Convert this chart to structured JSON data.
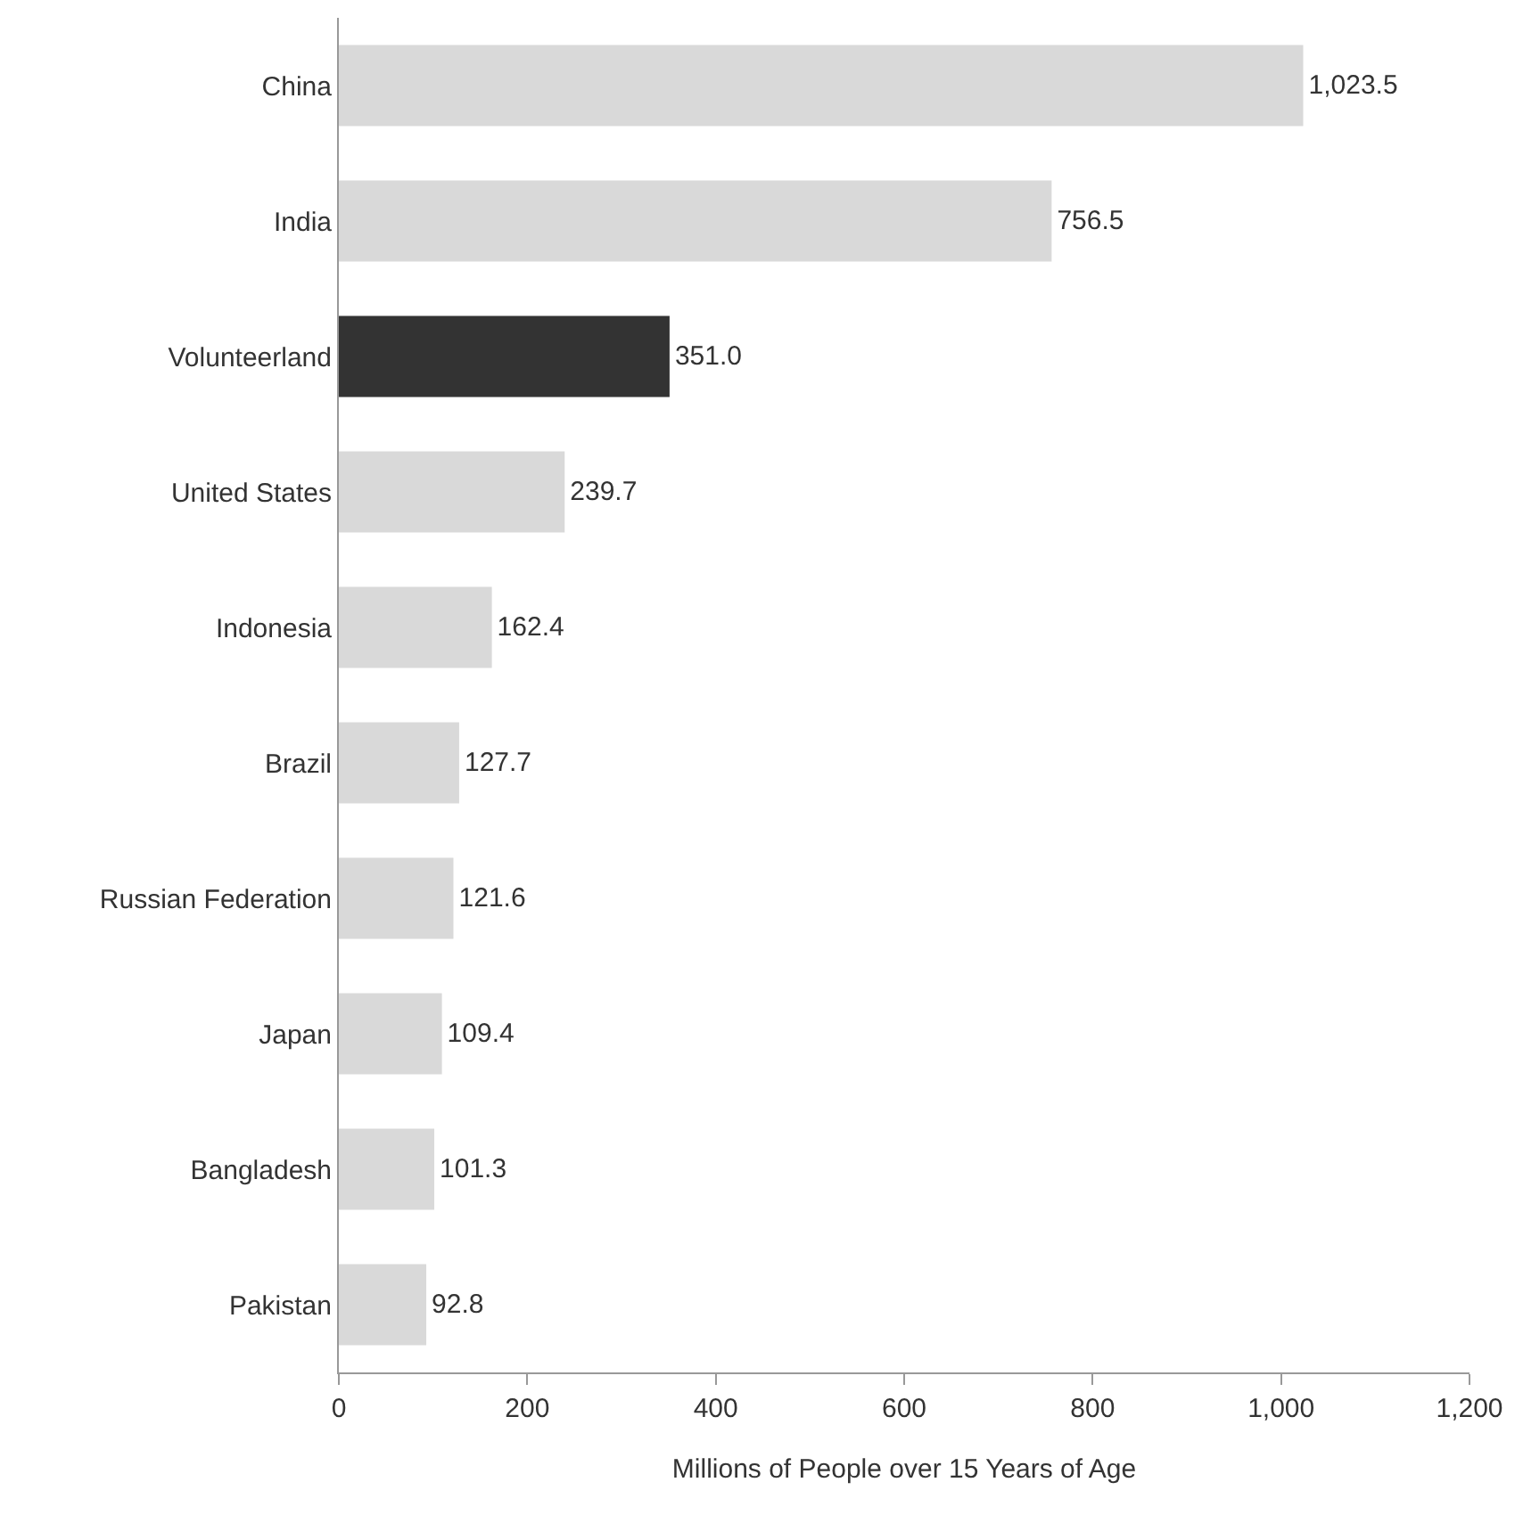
{
  "chart_data": {
    "type": "bar",
    "orientation": "horizontal",
    "xlabel": "Millions of People over 15 Years of Age",
    "categories": [
      "China",
      "India",
      "Volunteerland",
      "United States",
      "Indonesia",
      "Brazil",
      "Russian Federation",
      "Japan",
      "Bangladesh",
      "Pakistan"
    ],
    "values": [
      1023.5,
      756.5,
      351.0,
      239.7,
      162.4,
      127.7,
      121.6,
      109.4,
      101.3,
      92.8
    ],
    "colors": [
      "#d9d9d9",
      "#d9d9d9",
      "#333333",
      "#d9d9d9",
      "#d9d9d9",
      "#d9d9d9",
      "#d9d9d9",
      "#d9d9d9",
      "#d9d9d9",
      "#d9d9d9"
    ],
    "xlim": [
      0,
      1200
    ],
    "xticks": [
      0,
      200,
      400,
      600,
      800,
      {
        "value": 1000,
        "label": "1,000"
      },
      {
        "value": 1200,
        "label": "1,200"
      }
    ],
    "value_labels": [
      "1,023.5",
      "756.5",
      "351.0",
      "239.7",
      "162.4",
      "127.7",
      "121.6",
      "109.4",
      "101.3",
      "92.8"
    ],
    "grid": false
  }
}
